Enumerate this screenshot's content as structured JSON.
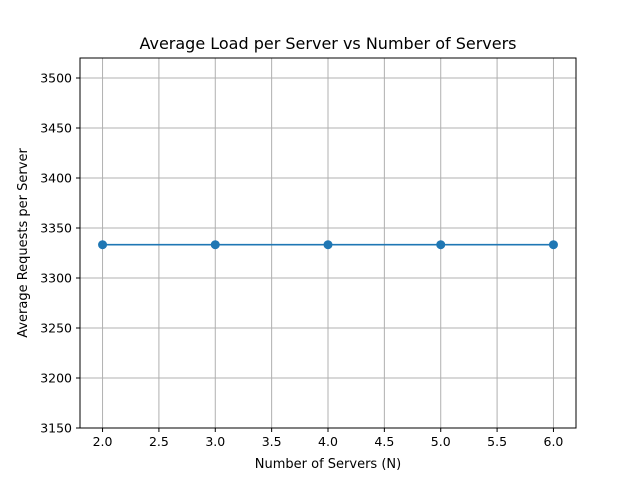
{
  "chart_data": {
    "type": "line",
    "title": "Average Load per Server vs Number of Servers",
    "xlabel": "Number of Servers (N)",
    "ylabel": "Average Requests per Server",
    "x": [
      2,
      3,
      4,
      5,
      6
    ],
    "series": [
      {
        "values": [
          3333.3,
          3333.3,
          3333.3,
          3333.3,
          3333.3
        ],
        "color": "#1f77b4",
        "marker": "circle"
      }
    ],
    "xlim": [
      1.8,
      6.2
    ],
    "ylim": [
      3150,
      3520
    ],
    "xticks": [
      2.0,
      2.5,
      3.0,
      3.5,
      4.0,
      4.5,
      5.0,
      5.5,
      6.0
    ],
    "xtick_labels": [
      "2.0",
      "2.5",
      "3.0",
      "3.5",
      "4.0",
      "4.5",
      "5.0",
      "5.5",
      "6.0"
    ],
    "yticks": [
      3150,
      3200,
      3250,
      3300,
      3350,
      3400,
      3450,
      3500
    ],
    "ytick_labels": [
      "3150",
      "3200",
      "3250",
      "3300",
      "3350",
      "3400",
      "3450",
      "3500"
    ],
    "grid": true,
    "legend": "none"
  }
}
